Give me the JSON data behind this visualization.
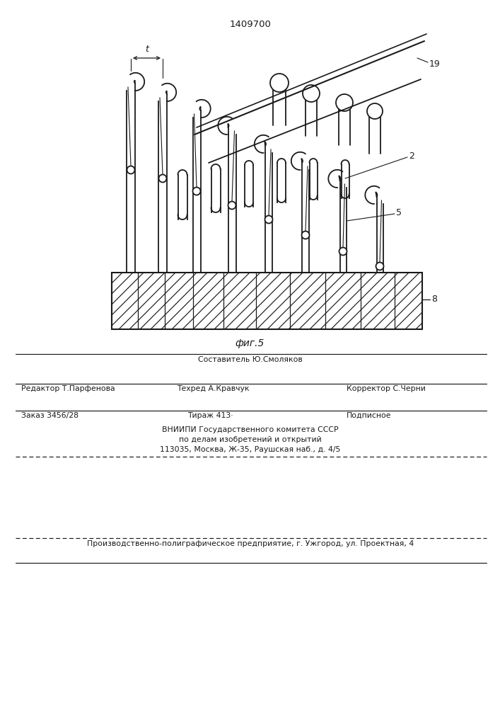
{
  "patent_number": "1409700",
  "fig_label": "фиг.5",
  "background_color": "#ffffff",
  "line_color": "#1a1a1a",
  "footer_line1_center": "Составитель Ю.Смоляков",
  "footer_line2_left": "Редактор Т.Парфенова",
  "footer_line2_mid": "Техред А.Кравчук",
  "footer_line2_right": "Корректор С.Черни",
  "footer_line3_left": "Заказ 3456/28",
  "footer_line3_mid": "Тираж 413·",
  "footer_line3_right": "Подписное",
  "footer_line4": "ВНИИПИ Государственного комитета СССР",
  "footer_line5": "по делам изобретений и открытий",
  "footer_line6": "113035, Москва, Ж-35, Раушская наб., д. 4/5",
  "footer_line7": "Производственно-полиграфическое предприятие, г. Ужгород, ул. Проектная, 4"
}
